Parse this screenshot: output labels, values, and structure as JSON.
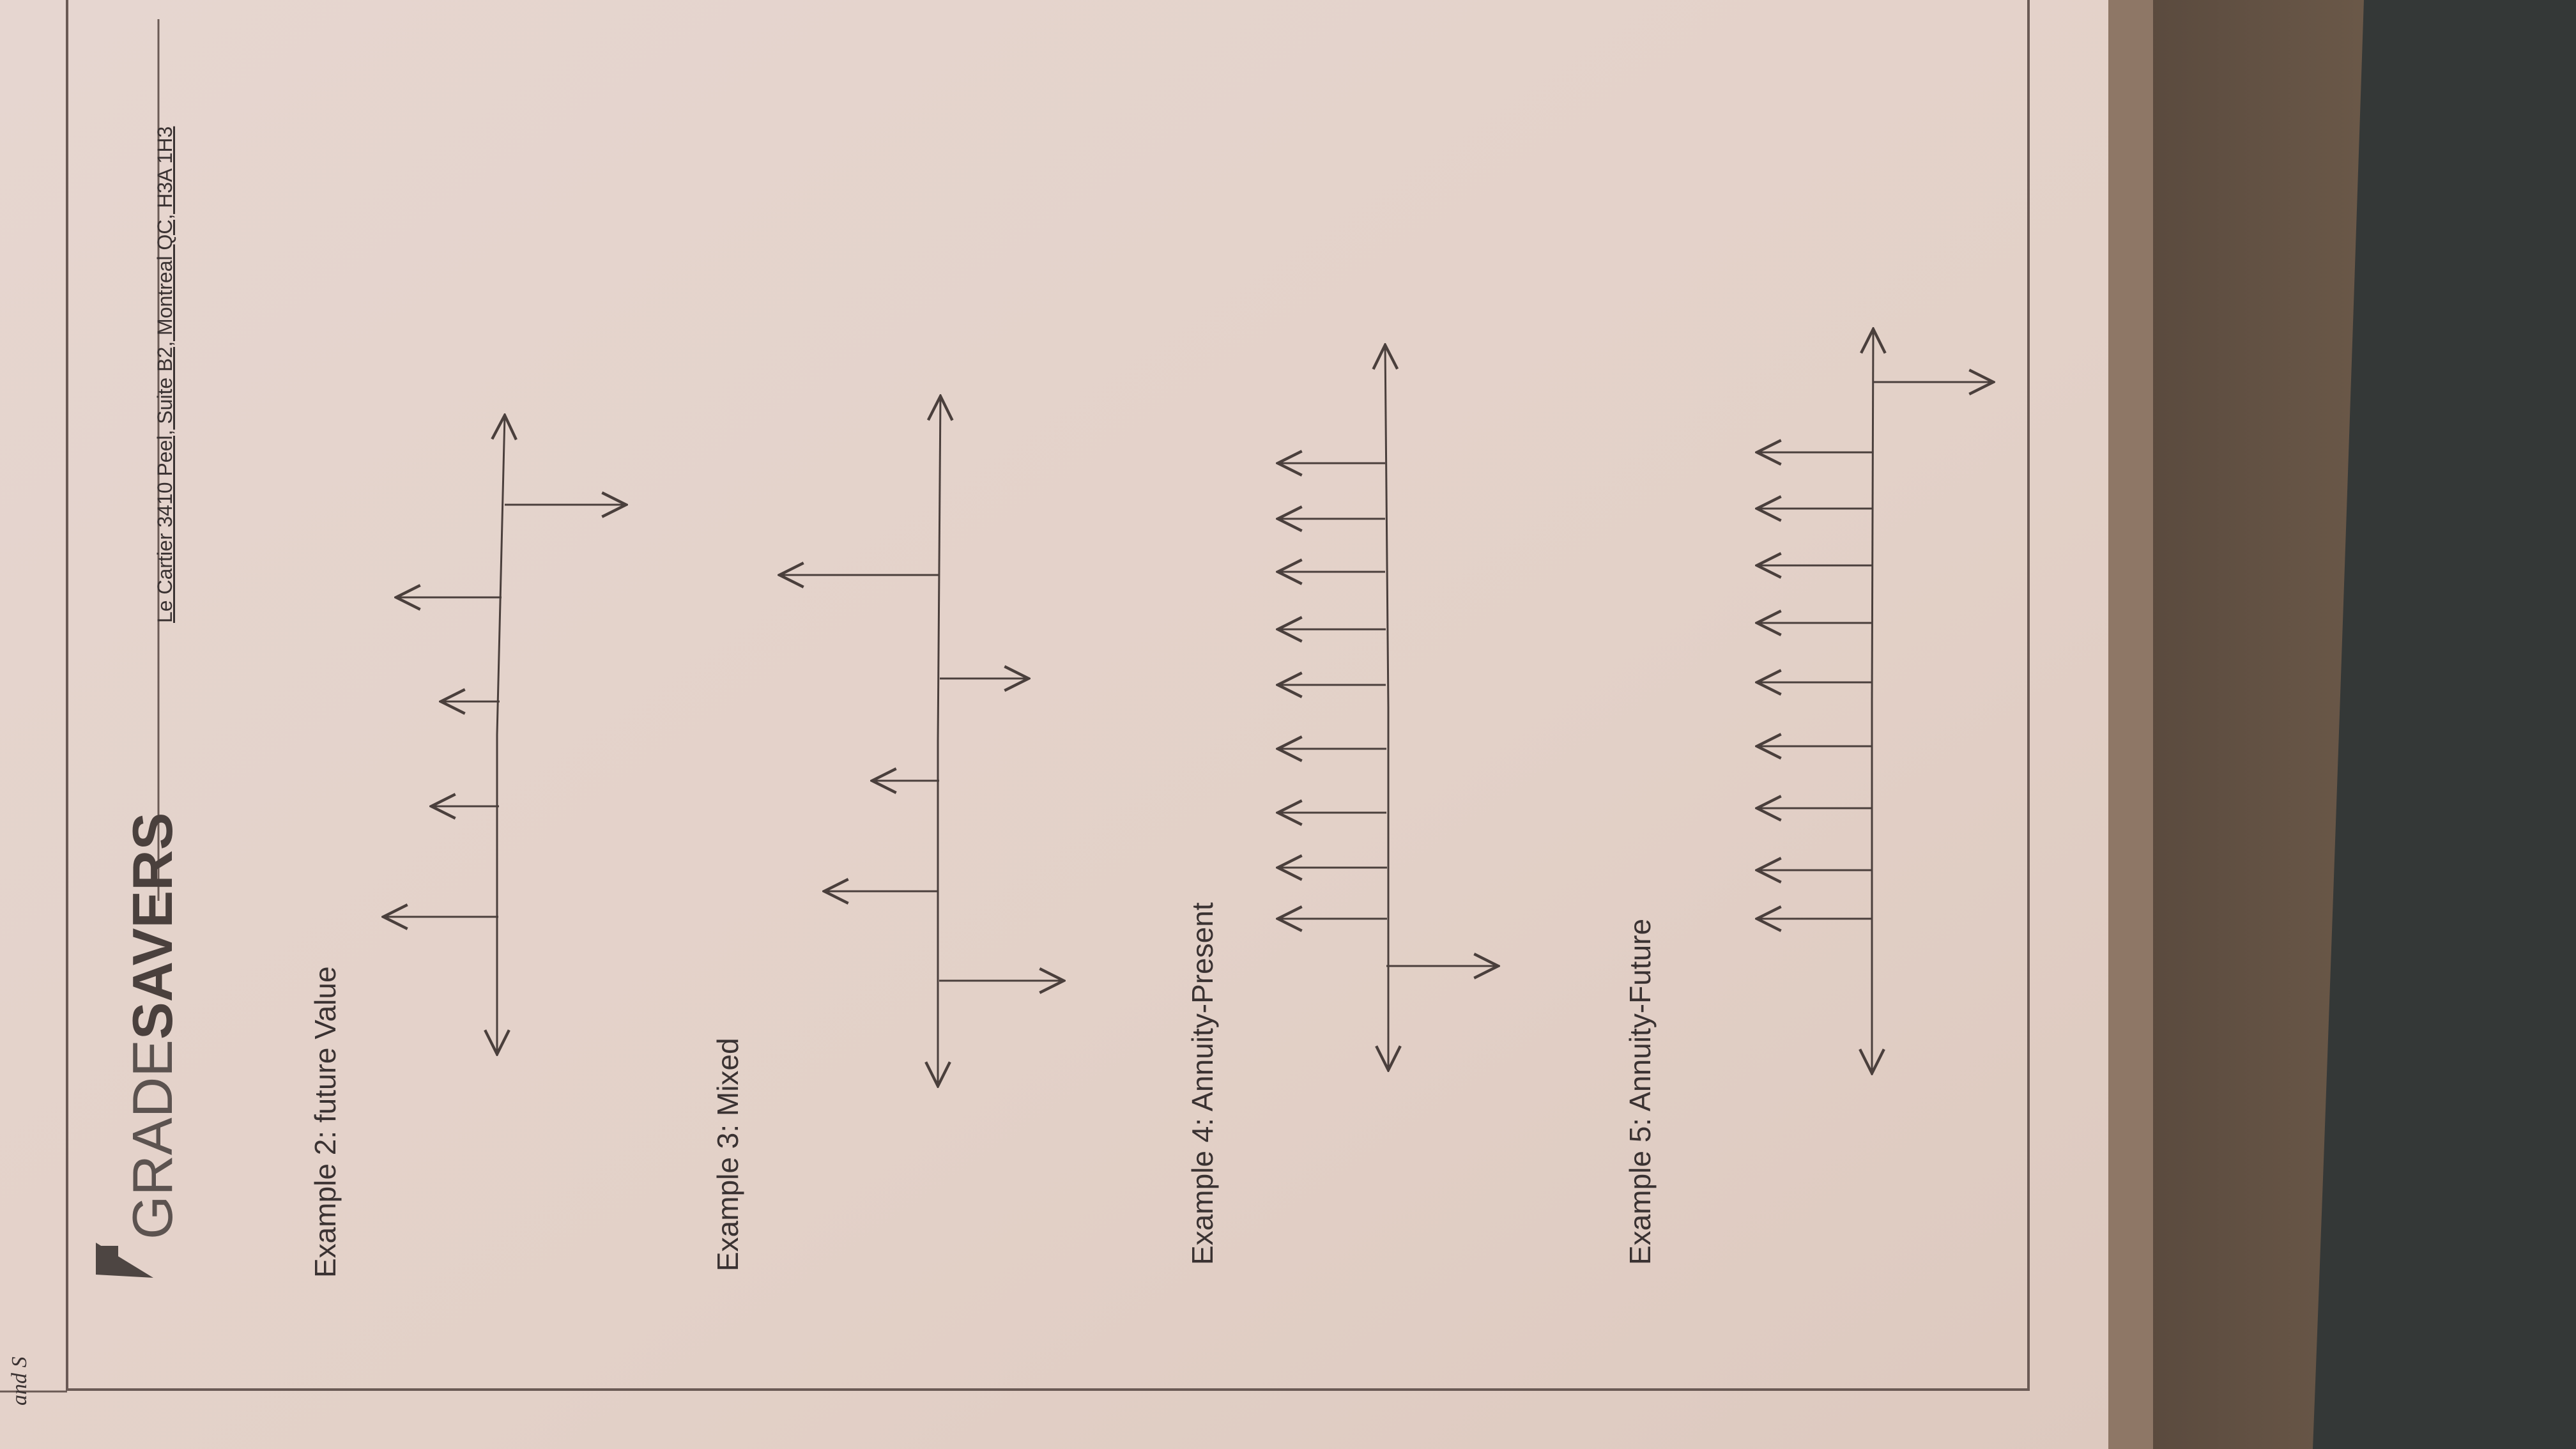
{
  "photo": {
    "corner_text": "and S",
    "colors": {
      "paper": "#e3d3cd",
      "ink": "#4a3f3c",
      "rule": "#6a5a55",
      "counter": "#8e7766",
      "table": "#5a4c44",
      "background_dark": "#37342f"
    }
  },
  "header": {
    "logo_grade": "GRADE",
    "logo_savers": "SAVERS",
    "address": "Le Cartier 3410 Peel, Suite B2, Montreal QC, H3A 1H3"
  },
  "examples": [
    {
      "label": "Example 2: future Value",
      "up_flows": 1,
      "down_flows": 4
    },
    {
      "label": "Example 3: Mixed",
      "up_flows": 2,
      "down_flows": 3
    },
    {
      "label": "Example 4: Annuity-Present",
      "up_flows": 1,
      "down_flows": 9
    },
    {
      "label": "Example 5: Annuity-Future",
      "up_flows": 1,
      "down_flows": 9
    }
  ]
}
